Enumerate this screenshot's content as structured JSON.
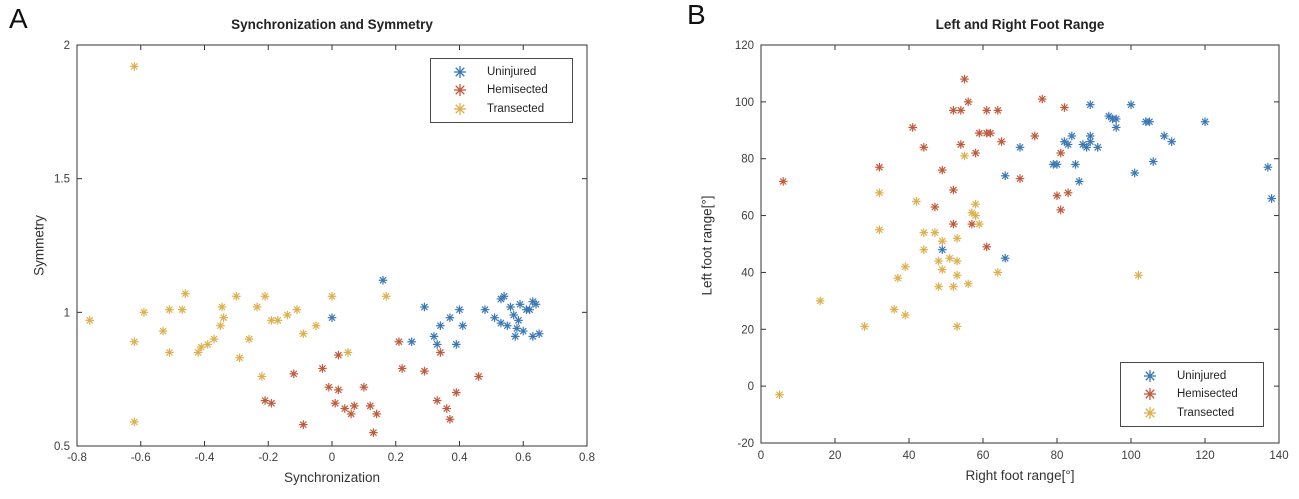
{
  "figure": {
    "background": "#ffffff"
  },
  "panels": [
    {
      "panel_label": "A"
    },
    {
      "panel_label": "B"
    }
  ],
  "chart_data": {
    "type": "scatter",
    "marker": "asterisk",
    "grid": false,
    "axis_color": "#333333",
    "charts": [
      {
        "panel_label": "A",
        "title": "Synchronization and Symmetry",
        "xlabel": "Synchronization",
        "ylabel": "Symmetry",
        "xlim": [
          -0.8,
          0.8
        ],
        "ylim": [
          0.5,
          2
        ],
        "xticks": [
          -0.8,
          -0.6,
          -0.4,
          -0.2,
          0,
          0.2,
          0.4,
          0.6,
          0.8
        ],
        "xtick_labels": [
          "-0.8",
          "-0.6",
          "-0.4",
          "-0.2",
          "0",
          "0.2",
          "0.4",
          "0.6",
          "0.8"
        ],
        "yticks": [
          0.5,
          1,
          1.5,
          2
        ],
        "ytick_labels": [
          "0.5",
          "1",
          "1.5",
          "2"
        ],
        "legend_position": "top-right",
        "series": [
          {
            "name": "Uninjured",
            "color": "#3a78b5",
            "points": [
              [
                0.0,
                0.98
              ],
              [
                0.16,
                1.12
              ],
              [
                0.25,
                0.89
              ],
              [
                0.29,
                1.02
              ],
              [
                0.32,
                0.91
              ],
              [
                0.33,
                0.88
              ],
              [
                0.34,
                0.95
              ],
              [
                0.37,
                0.98
              ],
              [
                0.39,
                0.88
              ],
              [
                0.4,
                1.01
              ],
              [
                0.41,
                0.95
              ],
              [
                0.48,
                1.01
              ],
              [
                0.51,
                0.98
              ],
              [
                0.53,
                1.05
              ],
              [
                0.53,
                0.96
              ],
              [
                0.54,
                1.06
              ],
              [
                0.55,
                0.95
              ],
              [
                0.56,
                1.02
              ],
              [
                0.57,
                0.99
              ],
              [
                0.575,
                0.91
              ],
              [
                0.58,
                0.94
              ],
              [
                0.585,
                0.97
              ],
              [
                0.59,
                1.03
              ],
              [
                0.6,
                0.93
              ],
              [
                0.61,
                1.01
              ],
              [
                0.62,
                1.01
              ],
              [
                0.63,
                1.04
              ],
              [
                0.63,
                0.91
              ],
              [
                0.64,
                1.03
              ],
              [
                0.65,
                0.92
              ]
            ]
          },
          {
            "name": "Hemisected",
            "color": "#c05a3c",
            "points": [
              [
                -0.21,
                0.67
              ],
              [
                -0.19,
                0.66
              ],
              [
                -0.12,
                0.77
              ],
              [
                -0.09,
                0.58
              ],
              [
                -0.03,
                0.79
              ],
              [
                -0.01,
                0.72
              ],
              [
                0.01,
                0.66
              ],
              [
                0.02,
                0.84
              ],
              [
                0.02,
                0.71
              ],
              [
                0.04,
                0.64
              ],
              [
                0.06,
                0.62
              ],
              [
                0.07,
                0.65
              ],
              [
                0.1,
                0.72
              ],
              [
                0.12,
                0.65
              ],
              [
                0.13,
                0.55
              ],
              [
                0.14,
                0.62
              ],
              [
                0.21,
                0.89
              ],
              [
                0.22,
                0.79
              ],
              [
                0.29,
                0.78
              ],
              [
                0.33,
                0.67
              ],
              [
                0.34,
                0.85
              ],
              [
                0.36,
                0.64
              ],
              [
                0.37,
                0.6
              ],
              [
                0.39,
                0.7
              ],
              [
                0.46,
                0.76
              ]
            ]
          },
          {
            "name": "Transected",
            "color": "#ddb04e",
            "points": [
              [
                -0.76,
                0.97
              ],
              [
                -0.62,
                1.92
              ],
              [
                -0.62,
                0.59
              ],
              [
                -0.62,
                0.89
              ],
              [
                -0.59,
                1.0
              ],
              [
                -0.53,
                0.93
              ],
              [
                -0.51,
                1.01
              ],
              [
                -0.51,
                0.85
              ],
              [
                -0.47,
                1.01
              ],
              [
                -0.46,
                1.07
              ],
              [
                -0.42,
                0.85
              ],
              [
                -0.41,
                0.87
              ],
              [
                -0.39,
                0.88
              ],
              [
                -0.37,
                0.9
              ],
              [
                -0.35,
                0.95
              ],
              [
                -0.345,
                1.02
              ],
              [
                -0.34,
                0.98
              ],
              [
                -0.3,
                1.06
              ],
              [
                -0.29,
                0.83
              ],
              [
                -0.26,
                0.9
              ],
              [
                -0.235,
                1.02
              ],
              [
                -0.22,
                0.76
              ],
              [
                -0.21,
                1.06
              ],
              [
                -0.19,
                0.97
              ],
              [
                -0.17,
                0.97
              ],
              [
                -0.14,
                0.99
              ],
              [
                -0.11,
                1.01
              ],
              [
                -0.09,
                0.92
              ],
              [
                -0.05,
                0.95
              ],
              [
                0.0,
                1.06
              ],
              [
                0.05,
                0.85
              ],
              [
                0.17,
                1.06
              ]
            ]
          }
        ]
      },
      {
        "panel_label": "B",
        "title": "Left and Right Foot Range",
        "xlabel": "Right foot range[°]",
        "ylabel": "Left foot range[°]",
        "xlim": [
          0,
          140
        ],
        "ylim": [
          -20,
          120
        ],
        "xticks": [
          0,
          20,
          40,
          60,
          80,
          100,
          120,
          140
        ],
        "xtick_labels": [
          "0",
          "20",
          "40",
          "60",
          "80",
          "100",
          "120",
          "140"
        ],
        "yticks": [
          -20,
          0,
          20,
          40,
          60,
          80,
          100,
          120
        ],
        "ytick_labels": [
          "-20",
          "0",
          "20",
          "40",
          "60",
          "80",
          "100",
          "120"
        ],
        "legend_position": "bottom-right",
        "series": [
          {
            "name": "Uninjured",
            "color": "#3a78b5",
            "points": [
              [
                49,
                48
              ],
              [
                66,
                45
              ],
              [
                66,
                74
              ],
              [
                70,
                84
              ],
              [
                79,
                78
              ],
              [
                80,
                78
              ],
              [
                82,
                86
              ],
              [
                83,
                85
              ],
              [
                84,
                88
              ],
              [
                85,
                78
              ],
              [
                86,
                72
              ],
              [
                87,
                85
              ],
              [
                88,
                84
              ],
              [
                89,
                99
              ],
              [
                89,
                88
              ],
              [
                89,
                86
              ],
              [
                91,
                84
              ],
              [
                94,
                95
              ],
              [
                95,
                94
              ],
              [
                96,
                94
              ],
              [
                96,
                91
              ],
              [
                100,
                99
              ],
              [
                101,
                75
              ],
              [
                104,
                93
              ],
              [
                105,
                93
              ],
              [
                106,
                79
              ],
              [
                109,
                88
              ],
              [
                111,
                86
              ],
              [
                120,
                93
              ],
              [
                137,
                77
              ],
              [
                138,
                66
              ]
            ]
          },
          {
            "name": "Hemisected",
            "color": "#c05a3c",
            "points": [
              [
                6,
                72
              ],
              [
                32,
                77
              ],
              [
                41,
                91
              ],
              [
                44,
                84
              ],
              [
                47,
                63
              ],
              [
                49,
                76
              ],
              [
                52,
                97
              ],
              [
                52,
                69
              ],
              [
                52,
                57
              ],
              [
                54,
                97
              ],
              [
                54,
                85
              ],
              [
                55,
                108
              ],
              [
                56,
                100
              ],
              [
                57,
                57
              ],
              [
                58,
                82
              ],
              [
                59,
                89
              ],
              [
                61,
                97
              ],
              [
                61,
                89
              ],
              [
                61,
                49
              ],
              [
                62,
                89
              ],
              [
                64,
                97
              ],
              [
                65,
                86
              ],
              [
                70,
                73
              ],
              [
                74,
                88
              ],
              [
                76,
                101
              ],
              [
                80,
                67
              ],
              [
                81,
                62
              ],
              [
                81,
                82
              ],
              [
                82,
                98
              ],
              [
                83,
                68
              ]
            ]
          },
          {
            "name": "Transected",
            "color": "#ddb04e",
            "points": [
              [
                5,
                -3
              ],
              [
                16,
                30
              ],
              [
                28,
                21
              ],
              [
                32,
                68
              ],
              [
                32,
                55
              ],
              [
                36,
                27
              ],
              [
                37,
                38
              ],
              [
                39,
                42
              ],
              [
                39,
                25
              ],
              [
                42,
                65
              ],
              [
                44,
                54
              ],
              [
                44,
                48
              ],
              [
                47,
                54
              ],
              [
                48,
                44
              ],
              [
                48,
                35
              ],
              [
                49,
                51
              ],
              [
                49,
                41
              ],
              [
                51,
                45
              ],
              [
                52,
                35
              ],
              [
                53,
                52
              ],
              [
                53,
                44
              ],
              [
                53,
                39
              ],
              [
                53,
                21
              ],
              [
                55,
                81
              ],
              [
                56,
                36
              ],
              [
                57,
                61
              ],
              [
                58,
                64
              ],
              [
                58,
                60
              ],
              [
                59,
                57
              ],
              [
                64,
                40
              ],
              [
                102,
                39
              ]
            ]
          }
        ]
      }
    ]
  }
}
